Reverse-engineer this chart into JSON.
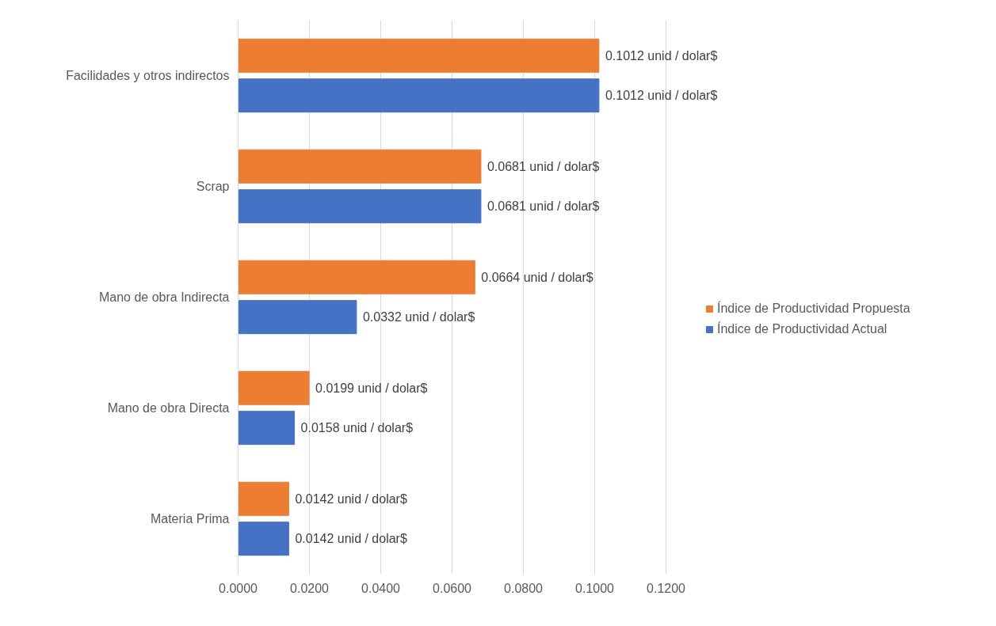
{
  "chart_data": {
    "type": "bar",
    "orientation": "horizontal",
    "categories": [
      "Facilidades y otros indirectos",
      "Scrap",
      "Mano de obra Indirecta",
      "Mano de obra Directa",
      "Materia Prima"
    ],
    "series": [
      {
        "name": "Índice de Productividad Propuesta",
        "color": "#ed7d31",
        "values": [
          0.1012,
          0.0681,
          0.0664,
          0.0199,
          0.0142
        ],
        "value_labels": [
          "0.1012 unid / dolar$",
          "0.0681 unid / dolar$",
          "0.0664 unid / dolar$",
          "0.0199 unid / dolar$",
          "0.0142 unid / dolar$"
        ]
      },
      {
        "name": "Índice de Productividad Actual",
        "color": "#4472c4",
        "values": [
          0.1012,
          0.0681,
          0.0332,
          0.0158,
          0.0142
        ],
        "value_labels": [
          "0.1012 unid / dolar$",
          "0.0681 unid / dolar$",
          "0.0332 unid / dolar$",
          "0.0158 unid / dolar$",
          "0.0142 unid / dolar$"
        ]
      }
    ],
    "xlim": [
      0,
      0.12
    ],
    "xticks": [
      {
        "value": 0,
        "label": "0.0000"
      },
      {
        "value": 0.02,
        "label": "0.0200"
      },
      {
        "value": 0.04,
        "label": "0.0400"
      },
      {
        "value": 0.06,
        "label": "0.0600"
      },
      {
        "value": 0.08,
        "label": "0.0800"
      },
      {
        "value": 0.1,
        "label": "0.1000"
      },
      {
        "value": 0.12,
        "label": "0.1200"
      }
    ],
    "grid": "x",
    "legend": "right"
  }
}
